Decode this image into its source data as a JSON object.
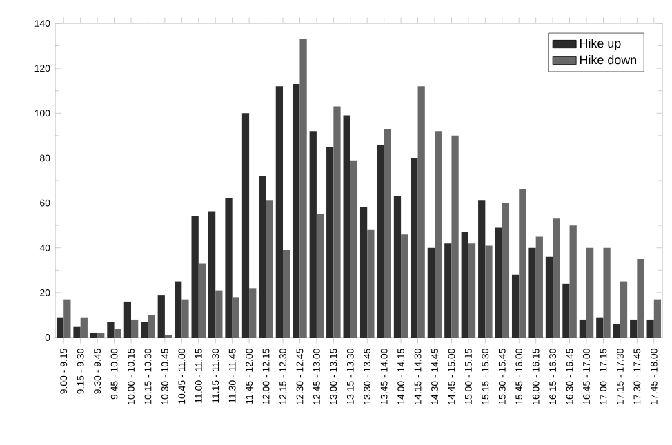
{
  "chart_data": {
    "type": "bar",
    "categories": [
      "9.00 - 9.15",
      "9.15 - 9.30",
      "9.30 - 9.45",
      "9.45 - 10.00",
      "10.00 - 10.15",
      "10.15 - 10.30",
      "10.30 - 10.45",
      "10.45 - 11.00",
      "11.00 - 11.15",
      "11.15 - 11.30",
      "11.30 - 11.45",
      "11.45 - 12.00",
      "12.00 - 12.15",
      "12.15 - 12.30",
      "12.30 - 12.45",
      "12.45 - 13.00",
      "13.00 - 13.15",
      "13.15 - 13.30",
      "13.30 - 13.45",
      "13.45 - 14.00",
      "14.00 - 14.15",
      "14.15 - 14.30",
      "14.30 - 14.45",
      "14.45 - 15.00",
      "15.00 - 15.15",
      "15.15 - 15.30",
      "15.30 - 15.45",
      "15.45 - 16.00",
      "16.00 - 16.15",
      "16.15 - 16.30",
      "16.30 - 16.45",
      "16.45 - 17.00",
      "17.00 - 17.15",
      "17.15 - 17.30",
      "17.30 - 17.45",
      "17.45 - 18.00"
    ],
    "series": [
      {
        "name": "Hike up",
        "color": "#2b2b2b",
        "values": [
          9,
          5,
          2,
          7,
          16,
          7,
          19,
          25,
          54,
          56,
          62,
          100,
          72,
          112,
          113,
          92,
          85,
          99,
          58,
          86,
          63,
          80,
          40,
          42,
          47,
          61,
          49,
          28,
          40,
          36,
          24,
          8,
          9,
          6,
          8,
          8
        ]
      },
      {
        "name": "Hike down",
        "color": "#686868",
        "values": [
          17,
          9,
          2,
          4,
          8,
          10,
          1,
          17,
          33,
          21,
          18,
          22,
          61,
          39,
          133,
          55,
          103,
          79,
          48,
          93,
          46,
          112,
          92,
          90,
          42,
          41,
          60,
          66,
          45,
          53,
          50,
          40,
          40,
          25,
          35,
          17
        ]
      }
    ],
    "ylim": [
      0,
      140
    ],
    "yticks": [
      0,
      20,
      40,
      60,
      80,
      100,
      120,
      140
    ],
    "grid": false,
    "legend": "top right"
  }
}
